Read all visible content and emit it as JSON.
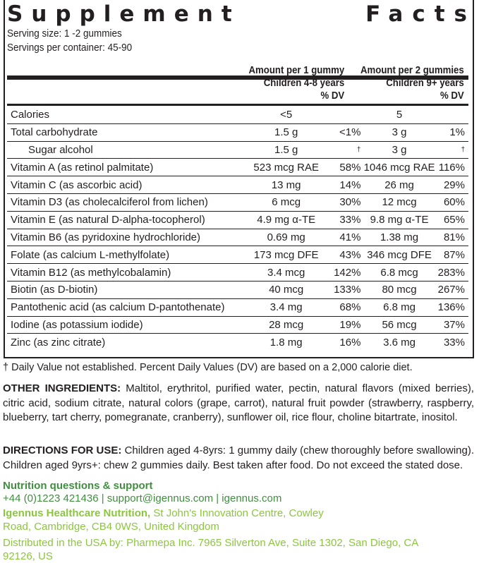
{
  "title": {
    "word1": "Supplement",
    "word2": "Facts"
  },
  "serving_size": "Serving size: 1 -2 gummies",
  "servings_per_container": "Servings per container: 45-90",
  "columns": {
    "col1_line1": "Amount per 1 gummy",
    "col1_line2": "Children 4-8 years",
    "col1_dv": "% DV",
    "col2_line1": "Amount per 2 gummies",
    "col2_line2": "Children 9+ years",
    "col2_dv": "% DV"
  },
  "rows": [
    {
      "name": "Calories",
      "amt1": "<5",
      "dv1": "",
      "amt2": "5",
      "dv2": ""
    },
    {
      "name": "Total carbohydrate",
      "amt1": "1.5 g",
      "dv1": "<1%",
      "amt2": "3 g",
      "dv2": "1%"
    },
    {
      "name": "Sugar alcohol",
      "amt1": "1.5 g",
      "dv1": "†",
      "amt2": "3 g",
      "dv2": "†"
    },
    {
      "name": "Vitamin A (as retinol palmitate)",
      "amt1": "523 mcg RAE",
      "dv1": "58%",
      "amt2": "1046 mcg RAE",
      "dv2": "116%"
    },
    {
      "name": "Vitamin C (as ascorbic acid)",
      "amt1": "13 mg",
      "dv1": "14%",
      "amt2": "26 mg",
      "dv2": "29%"
    },
    {
      "name": "Vitamin D3 (as cholecalciferol from lichen)",
      "amt1": "6 mcg",
      "dv1": "30%",
      "amt2": "12 mcg",
      "dv2": "60%"
    },
    {
      "name": "Vitamin E (as natural D-alpha-tocopherol)",
      "amt1": "4.9 mg α-TE",
      "dv1": "33%",
      "amt2": "9.8 mg α-TE",
      "dv2": "65%"
    },
    {
      "name": "Vitamin B6 (as pyridoxine hydrochloride)",
      "amt1": "0.69 mg",
      "dv1": "41%",
      "amt2": "1.38 mg",
      "dv2": "81%"
    },
    {
      "name": "Folate (as calcium L-methylfolate)",
      "amt1": "173 mcg DFE",
      "dv1": "43%",
      "amt2": "346 mcg DFE",
      "dv2": "87%"
    },
    {
      "name": "Vitamin B12 (as methylcobalamin)",
      "amt1": "3.4 mcg",
      "dv1": "142%",
      "amt2": "6.8 mcg",
      "dv2": "283%"
    },
    {
      "name": "Biotin (as D-biotin)",
      "amt1": "40 mcg",
      "dv1": "133%",
      "amt2": "80 mcg",
      "dv2": "267%"
    },
    {
      "name": "Pantothenic acid (as calcium D-pantothenate)",
      "amt1": "3.4 mg",
      "dv1": "68%",
      "amt2": "6.8 mg",
      "dv2": "136%"
    },
    {
      "name": "Iodine (as potassium iodide)",
      "amt1": "28 mcg",
      "dv1": "19%",
      "amt2": "56 mcg",
      "dv2": "37%"
    },
    {
      "name": "Zinc (as zinc citrate)",
      "amt1": "1.8 mg",
      "dv1": "16%",
      "amt2": "3.6 mg",
      "dv2": "33%"
    }
  ],
  "footnote": "† Daily Value not established.     Percent Daily Values (DV) are based on a 2,000 calorie diet.",
  "other_ingredients": {
    "label": "OTHER INGREDIENTS:",
    "text": " Maltitol, erythritol, purified water, pectin, natural flavors (mixed berries), citric acid, sodium citrate, natural colors (grape, carrot), natural fruit powder (strawberry, raspberry, blueberry, tart cherry, pomegranate, cranberry), sunflower oil, rice flour, choline bitartrate, inositol."
  },
  "directions": {
    "label": "DIRECTIONS FOR USE:",
    "text": " Children aged 4-8yrs: 1 gummy daily (chew thoroughly before swallowing). Children aged 9yrs+: chew 2 gummies daily. Best taken after food. Do not exceed the stated dose."
  },
  "support": {
    "heading": "Nutrition questions & support",
    "contact": "+44 (0)1223 421436 | support@igennus.com | igennus.com",
    "company": "Igennus Healthcare Nutrition,",
    "address": " St John's Innovation Centre, Cowley Road, Cambridge, CB4 0WS, United Kingdom",
    "distributor": "Distributed in the USA by: Pharmepa Inc. 7965 Silverton Ave, Suite 1302, San Diego, CA 92126, US"
  },
  "colors": {
    "text": "#231f20",
    "dark_green": "#3f8f3f",
    "light_green": "#8cc63e"
  }
}
